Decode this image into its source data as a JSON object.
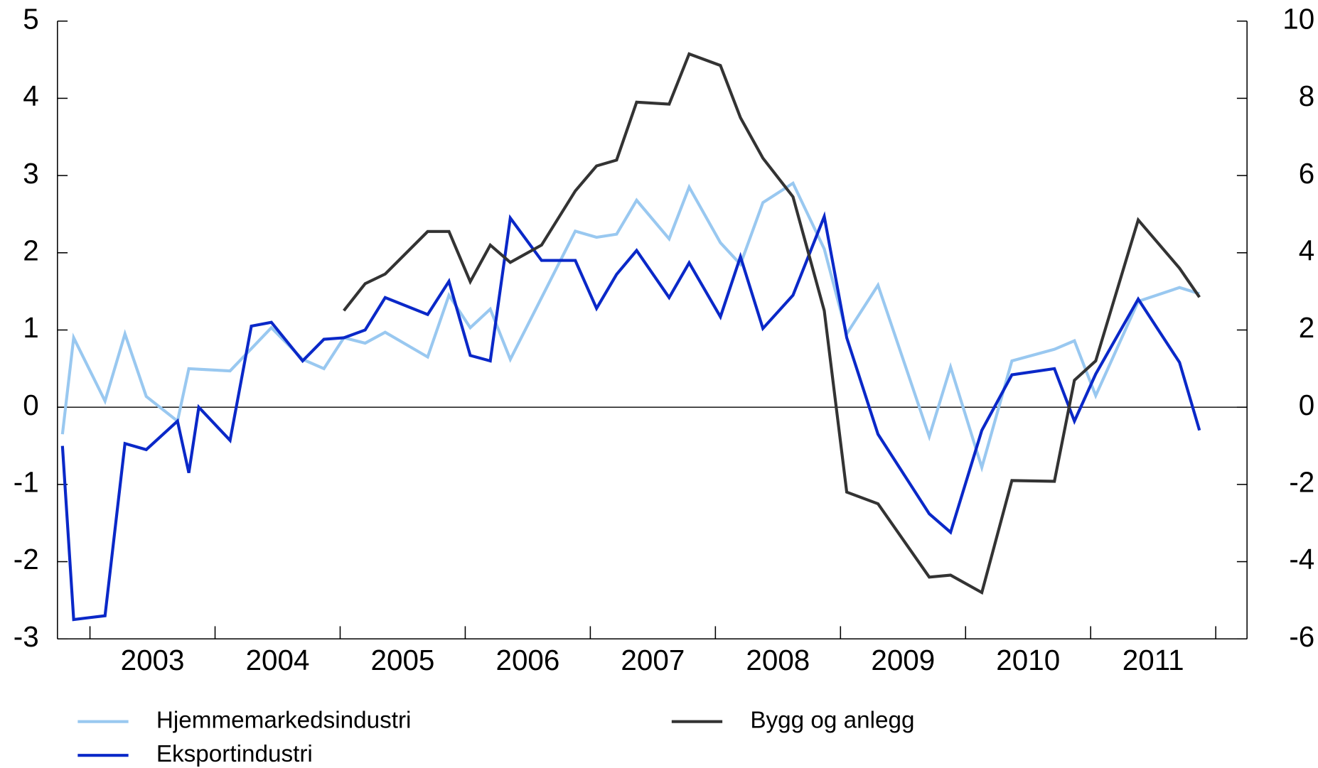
{
  "chart_data": {
    "type": "line",
    "xlim": [
      2002.74,
      2012.25
    ],
    "xticks": [
      2003,
      2004,
      2005,
      2006,
      2007,
      2008,
      2009,
      2010,
      2011,
      2012
    ],
    "xtick_labels": [
      {
        "value": 2003.5,
        "label": "2003"
      },
      {
        "value": 2004.5,
        "label": "2004"
      },
      {
        "value": 2005.5,
        "label": "2005"
      },
      {
        "value": 2006.5,
        "label": "2006"
      },
      {
        "value": 2007.5,
        "label": "2007"
      },
      {
        "value": 2008.5,
        "label": "2008"
      },
      {
        "value": 2009.5,
        "label": "2009"
      },
      {
        "value": 2010.5,
        "label": "2010"
      },
      {
        "value": 2011.5,
        "label": "2011"
      }
    ],
    "ylim": [
      -3,
      5
    ],
    "yticks": [
      -3,
      -2,
      -1,
      0,
      1,
      2,
      3,
      4,
      5
    ],
    "y2lim": [
      -6,
      10
    ],
    "y2ticks": [
      -6,
      -4,
      -2,
      0,
      2,
      4,
      6,
      8,
      10
    ],
    "series": [
      {
        "name": "Hjemmemarkedsindustri",
        "color": "#99c8f0",
        "x": [
          2002.78,
          2002.87,
          2003.12,
          2003.28,
          2003.45,
          2003.7,
          2003.79,
          2004.12,
          2004.45,
          2004.7,
          2004.87,
          2005.03,
          2005.2,
          2005.36,
          2005.7,
          2005.87,
          2006.04,
          2006.2,
          2006.36,
          2006.88,
          2007.05,
          2007.21,
          2007.37,
          2007.63,
          2007.79,
          2008.04,
          2008.2,
          2008.38,
          2008.62,
          2008.87,
          2009.05,
          2009.3,
          2009.71,
          2009.88,
          2010.13,
          2010.37,
          2010.71,
          2010.87,
          2011.04,
          2011.38,
          2011.71,
          2011.87
        ],
        "values": [
          -0.35,
          0.9,
          0.08,
          0.95,
          0.14,
          -0.18,
          0.5,
          0.47,
          1.03,
          0.62,
          0.5,
          0.9,
          0.83,
          0.97,
          0.65,
          1.45,
          1.03,
          1.27,
          0.62,
          2.28,
          2.2,
          2.24,
          2.68,
          2.18,
          2.85,
          2.13,
          1.85,
          2.65,
          2.9,
          2.05,
          0.95,
          1.58,
          -0.38,
          0.52,
          -0.78,
          0.6,
          0.75,
          0.86,
          0.15,
          1.37,
          1.55,
          1.47
        ]
      },
      {
        "name": "Eksportindustri",
        "color": "#0a28c8",
        "x": [
          2002.78,
          2002.87,
          2003.12,
          2003.28,
          2003.45,
          2003.7,
          2003.79,
          2003.87,
          2004.12,
          2004.29,
          2004.45,
          2004.7,
          2004.87,
          2005.03,
          2005.2,
          2005.36,
          2005.7,
          2005.87,
          2006.04,
          2006.2,
          2006.36,
          2006.61,
          2006.88,
          2007.05,
          2007.21,
          2007.37,
          2007.63,
          2007.79,
          2008.04,
          2008.2,
          2008.38,
          2008.62,
          2008.87,
          2009.05,
          2009.3,
          2009.71,
          2009.88,
          2010.13,
          2010.37,
          2010.71,
          2010.87,
          2011.04,
          2011.38,
          2011.71,
          2011.87
        ],
        "values": [
          -0.5,
          -2.75,
          -2.7,
          -0.47,
          -0.55,
          -0.18,
          -0.85,
          0,
          -0.43,
          1.05,
          1.1,
          0.6,
          0.88,
          0.9,
          1.0,
          1.42,
          1.2,
          1.63,
          0.67,
          0.6,
          2.45,
          1.9,
          1.9,
          1.28,
          1.72,
          2.03,
          1.42,
          1.87,
          1.17,
          1.95,
          1.02,
          1.45,
          2.47,
          0.9,
          -0.35,
          -1.38,
          -1.62,
          -0.3,
          0.42,
          0.5,
          -0.18,
          0.43,
          1.4,
          0.58,
          -0.3
        ]
      },
      {
        "name": "Bygg og anlegg",
        "color": "#333333",
        "axis": "y2",
        "x": [
          2005.03,
          2005.2,
          2005.36,
          2005.7,
          2005.87,
          2006.04,
          2006.2,
          2006.36,
          2006.61,
          2006.88,
          2007.05,
          2007.21,
          2007.37,
          2007.63,
          2007.79,
          2008.04,
          2008.2,
          2008.38,
          2008.62,
          2008.87,
          2009.05,
          2009.3,
          2009.71,
          2009.88,
          2010.13,
          2010.37,
          2010.71,
          2010.87,
          2011.04,
          2011.38,
          2011.71,
          2011.87
        ],
        "values": [
          2.5,
          3.2,
          3.45,
          4.55,
          4.55,
          3.25,
          4.2,
          3.75,
          4.2,
          5.6,
          6.25,
          6.4,
          7.9,
          7.85,
          9.15,
          8.85,
          7.5,
          6.45,
          5.45,
          2.5,
          -2.2,
          -2.5,
          -4.4,
          -4.35,
          -4.8,
          -1.9,
          -1.92,
          0.7,
          1.2,
          4.85,
          3.6,
          2.85
        ]
      }
    ]
  }
}
